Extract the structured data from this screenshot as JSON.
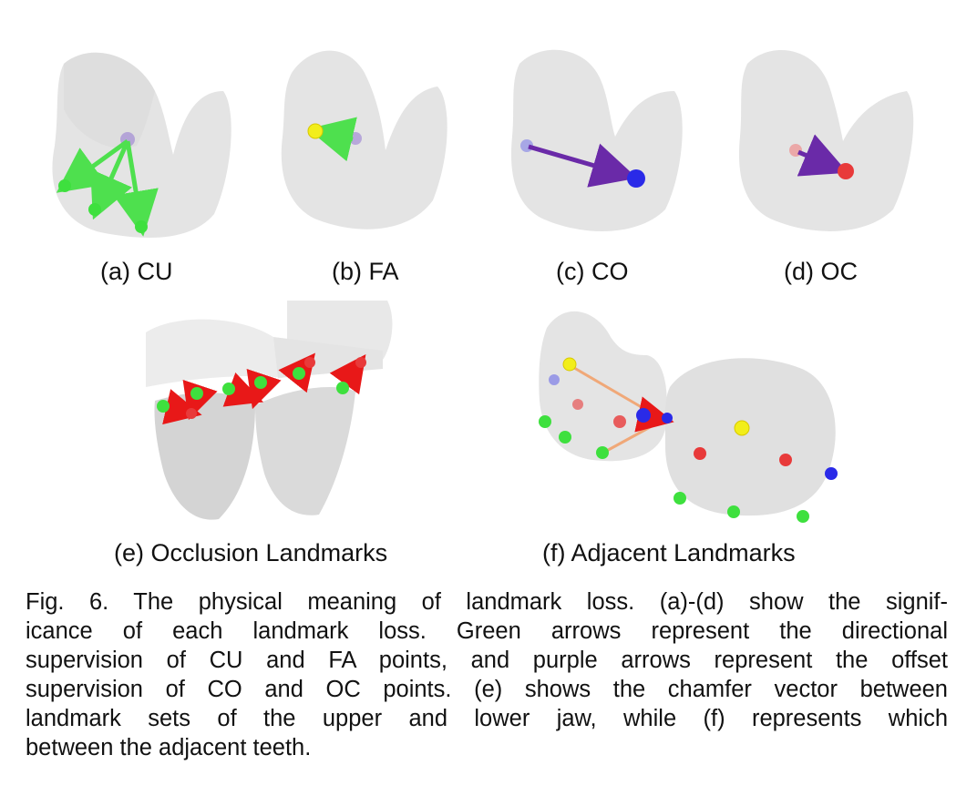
{
  "figure": {
    "panels": [
      {
        "id": "a",
        "label": "(a) CU"
      },
      {
        "id": "b",
        "label": "(b) FA"
      },
      {
        "id": "c",
        "label": "(c) CO"
      },
      {
        "id": "d",
        "label": "(d) OC"
      },
      {
        "id": "e",
        "label": "(e) Occlusion Landmarks"
      },
      {
        "id": "f",
        "label": "(f) Adjacent Landmarks"
      }
    ],
    "caption_lines": [
      "Fig. 6. The physical meaning of landmark loss. (a)-(d) show the signif-",
      "icance of each landmark loss. Green arrows represent the directional",
      "supervision of CU and FA points, and purple arrows represent the offset",
      "supervision of CO and OC points. (e) shows the chamfer vector between",
      "landmark sets of the upper and lower jaw, while (f) represents which",
      "between the adjacent teeth."
    ],
    "colors": {
      "tooth": "#e6e6e6",
      "tooth_shadow": "#d4d4d4",
      "green_point": "#3ee03e",
      "yellow_point": "#f2ee1a",
      "blue_point": "#2a2ae8",
      "red_point": "#e83a3a",
      "purple_arrow": "#6a2aa8",
      "green_arrow": "#4ee04e",
      "red_arrow": "#e81818",
      "orange_line": "#f0a878"
    }
  }
}
